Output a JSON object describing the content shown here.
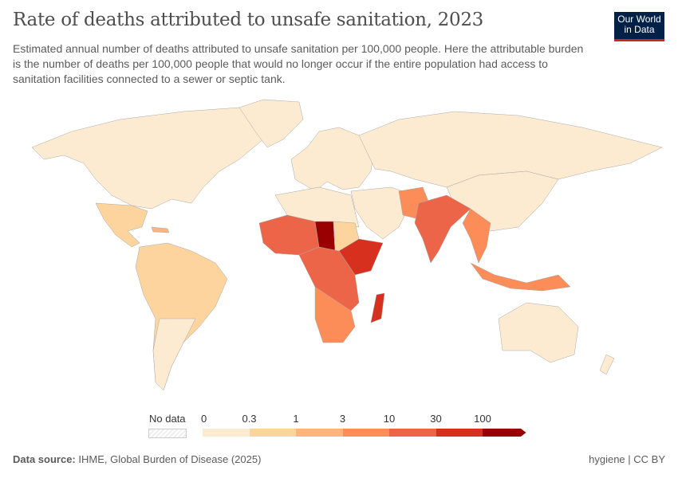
{
  "title": "Rate of deaths attributed to unsafe sanitation, 2023",
  "subtitle": "Estimated annual number of deaths attributed to unsafe sanitation per 100,000 people. Here the attributable burden is the number of deaths per 100,000 people that would no longer occur if the entire population had access to sanitation facilities connected to a sewer or septic tank.",
  "logo": {
    "line1": "Our World",
    "line2": "in Data"
  },
  "legend": {
    "no_data": "No data",
    "ticks": [
      "0",
      "0.3",
      "1",
      "3",
      "10",
      "30",
      "100"
    ],
    "colors": [
      "#fdebd1",
      "#fdd49e",
      "#fdb47f",
      "#fc8d59",
      "#ec6548",
      "#d7301f",
      "#990000"
    ]
  },
  "footer": {
    "source_label": "Data source:",
    "source": "IHME, Global Burden of Disease (2025)",
    "license": "hygiene | CC BY"
  }
}
